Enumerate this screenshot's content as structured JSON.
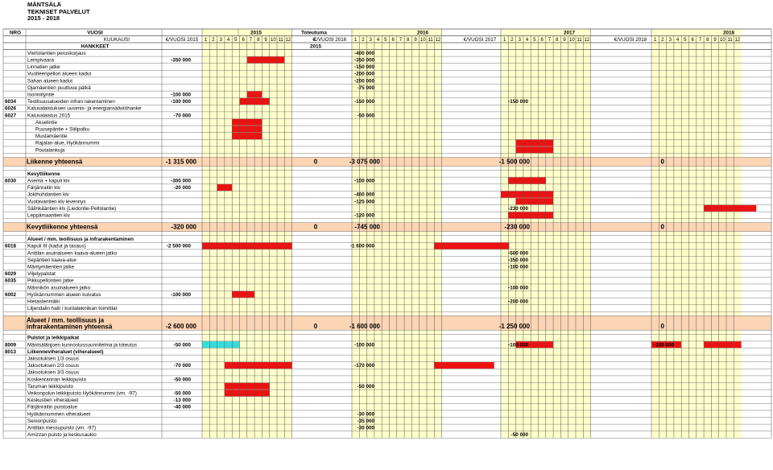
{
  "org": [
    "MÄNTSÄLÄ",
    "TEKNISET PALVELUT",
    "2015 - 2018"
  ],
  "header": {
    "row1": {
      "nro": "NRO",
      "vuosi": "VUOSI",
      "y2015": "2015",
      "toteutuma": "Toteutuma",
      "y2016": "2016",
      "y2017": "2017",
      "y2018": "2018"
    },
    "row2": {
      "kuukausi": "KUUKAUSI",
      "vuosi2015": "€/VUOSI 2015",
      "euro": "€",
      "vuosi2016": "€/VUOSI 2016",
      "vuosi2017": "€/VUOSI 2017",
      "vuosi2018": "€/VUOSI 2018"
    },
    "months": [
      "1",
      "2",
      "3",
      "4",
      "5",
      "6",
      "7",
      "8",
      "9",
      "10",
      "11",
      "12"
    ],
    "row3": {
      "hankkeet": "HANKKEET",
      "y2015": "2015"
    }
  },
  "colors": {
    "red": "#ee1111",
    "cyan": "#33dddd",
    "yellow": "#ffffcc",
    "peach": "#fcd5b4",
    "grid": "#555555"
  },
  "rows": [
    {
      "name": "Viertolantien peruskorjaus",
      "v16": "-400 000",
      "bars": []
    },
    {
      "name": "Lempivaara",
      "v15": "-350 000",
      "v16": "-350 000",
      "bars": [
        [
          "r",
          7,
          11
        ]
      ]
    },
    {
      "name": "Linnatien jatke",
      "v16": "-150 000",
      "bars": []
    },
    {
      "name": "Vuolteenpellon alueen kadut",
      "v16": "-200 000",
      "bars": []
    },
    {
      "name": "Sahan alueen kadut",
      "v16": "-200 000",
      "bars": []
    },
    {
      "name": "Ojamäentien puuttuva pätkä",
      "v16": "-75 000",
      "bars": []
    },
    {
      "name": "Isonniityntie",
      "v15": "-100 000",
      "bars": [
        [
          "r",
          7,
          8
        ]
      ]
    },
    {
      "nro": "6034",
      "name": "Teollisuusalueiden infran rakentaminen",
      "v15": "-100 000",
      "v16": "-150 000",
      "v17": "-150 000",
      "bars": [
        [
          "r",
          6,
          9
        ]
      ]
    },
    {
      "nro": "6026",
      "name": "Katuvalaistuksen uusimis- ja energiansäästöhanke",
      "bars": []
    },
    {
      "nro": "6027",
      "name": "Katuvalaistus 2015",
      "v15": "-70 000",
      "v16": "-50 000",
      "bars": []
    },
    {
      "name": "Akselintie",
      "indent": true,
      "bars": [
        [
          "r",
          5,
          8
        ]
      ]
    },
    {
      "name": "Puusepäntie + Siilipolku",
      "indent": true,
      "bars": [
        [
          "r",
          5,
          8
        ]
      ]
    },
    {
      "name": "Mustamäentie",
      "indent": true,
      "bars": [
        [
          "r",
          5,
          8
        ]
      ]
    },
    {
      "name": "Rajalan-alue, Hyökännummi",
      "indent": true,
      "bars": [
        [
          "r",
          27,
          31
        ]
      ]
    },
    {
      "name": "Poutalankuja",
      "indent": true,
      "bars": [
        [
          "r",
          27,
          31
        ]
      ]
    },
    {
      "empty": true
    },
    {
      "total": true,
      "name": "Liikenne yhteensä",
      "v15": "-1 315 000",
      "vt": "0",
      "v16": "-3 075 000",
      "v17": "-1 500 000",
      "v18": "0"
    },
    {
      "empty": true
    },
    {
      "name": "Kevytliikenne",
      "bold": true,
      "bars": []
    },
    {
      "nro": "6030",
      "name": "Asema + kapuli klv",
      "v15": "-300 000",
      "v16": "-100 000",
      "bars": [
        [
          "r",
          26,
          30
        ]
      ]
    },
    {
      "name": "Färjänraitin klv",
      "v15": "-20 000",
      "bars": [
        [
          "r",
          3,
          4
        ]
      ]
    },
    {
      "name": "Jokihuhdantien klv",
      "v16": "-400 000",
      "bars": [
        [
          "r",
          25,
          31
        ]
      ]
    },
    {
      "name": "Vuotavantien klv levennys",
      "v16": "-125 000",
      "bars": [
        [
          "r",
          27,
          31
        ]
      ]
    },
    {
      "name": "Sälinkääntien klv (Liedontie-Peltolantie)",
      "v17": "-230 000",
      "bars": [
        [
          "r",
          44,
          50
        ]
      ]
    },
    {
      "name": "Leppämaantien klv",
      "v16": "-120 000",
      "bars": [
        [
          "r",
          26,
          31
        ]
      ]
    },
    {
      "empty": true
    },
    {
      "total": true,
      "name": "Kevytliikenne yhteensä",
      "v15": "-320 000",
      "vt": "0",
      "v16": "-745 000",
      "v17": "-230 000",
      "v18": "0"
    },
    {
      "empty": true
    },
    {
      "name": "Alueet / mm. teollisuus ja infrarakentaminen",
      "bold": true,
      "bars": []
    },
    {
      "nro": "6018",
      "name": "Kapuli III (kadut ja tasaus)",
      "v15": "-2 500 000",
      "v16": "-1 600 000",
      "bars": [
        [
          "r",
          1,
          12
        ],
        [
          "r",
          24,
          33
        ]
      ]
    },
    {
      "name": "Anttilan asuinalueen kaava-alueen jatko",
      "v17": "-500 000",
      "bars": []
    },
    {
      "name": "Sepäntien kaava-alue",
      "v17": "-350 000",
      "bars": []
    },
    {
      "name": "Mäntymäentien jatke",
      "v17": "-100 000",
      "bars": []
    },
    {
      "nro": "6029",
      "name": "Viljelypalstat",
      "bars": []
    },
    {
      "nro": "6035",
      "name": "Pikkupellontien jatke",
      "bars": []
    },
    {
      "name": "Männikön asuinalueen jatko",
      "v17": "-100 000",
      "bars": []
    },
    {
      "nro": "6002",
      "name": "Hyökännummen alueen kuivatus",
      "v15": "-100 000",
      "bars": [
        [
          "r",
          5,
          7
        ]
      ]
    },
    {
      "name": "Hietastenmäki",
      "v17": "-200 000",
      "bars": []
    },
    {
      "name": "Liljendalin halli / kuntatekniikan toimitilat",
      "bars": []
    },
    {
      "empty": true
    },
    {
      "total": true,
      "two": true,
      "name": "Alueet / mm. teollisuus ja",
      "name2": "infrarakentaminen yhteensä",
      "v15": "-2 600 000",
      "vt": "0",
      "v16": "-1 600 000",
      "v17": "-1 250 000",
      "v18": "0"
    },
    {
      "empty": true
    },
    {
      "name": "Puistot ja leikkipaikat",
      "bold": true,
      "bars": []
    },
    {
      "nro": "8009",
      "name": "Mäntsälänjoen kunnostussuunnitelma ja toteutus",
      "v15": "-50 000",
      "v16": "-100 000",
      "v17": "-100 000",
      "v18": "-100 000",
      "bars": [
        [
          "c",
          1,
          5
        ],
        [
          "r",
          27,
          31
        ],
        [
          "r",
          44,
          48
        ],
        [
          "r",
          61,
          64
        ]
      ]
    },
    {
      "nro": "8013",
      "name": "Liikenneviheraluet (viheralueet)",
      "bold": true,
      "bars": []
    },
    {
      "name": "Jaksotuksen 1/3 osuus",
      "bars": []
    },
    {
      "name": "Jaksotuksen 2/3 osuus",
      "v15": "-70 000",
      "v16": "-170 000",
      "bars": [
        [
          "r",
          4,
          12
        ],
        [
          "r",
          24,
          31
        ]
      ]
    },
    {
      "name": "Jaksotuksen 3/3 osuus",
      "bars": []
    },
    {
      "name": "Koskenrannan leikkipuisto",
      "v15": "-50 000",
      "bars": []
    },
    {
      "name": "Taruman leikkipuisto",
      "v16": "-50 000",
      "bars": [
        [
          "r",
          4,
          9
        ]
      ]
    },
    {
      "name": "Veikonpolun leikkipuisto Hyökännummi (vm. -97)",
      "v15": "-50 000",
      "bars": [
        [
          "r",
          4,
          9
        ]
      ]
    },
    {
      "name": "Keskustien viheralueet",
      "v15": "-13 000",
      "bars": []
    },
    {
      "name": "Färjänraitin puistoalue",
      "v15": "-40 000",
      "bars": []
    },
    {
      "name": "Hyökännummen viheralueet",
      "v16": "-30 000",
      "bars": []
    },
    {
      "name": "Senioripuisto",
      "v16": "-35 000",
      "bars": []
    },
    {
      "name": "Anttilan messupuisto (vm. -97)",
      "v16": "-30 000",
      "bars": []
    },
    {
      "name": "Amizzan puisto ja keskusaukio",
      "v17": "-50 000",
      "bars": []
    }
  ]
}
